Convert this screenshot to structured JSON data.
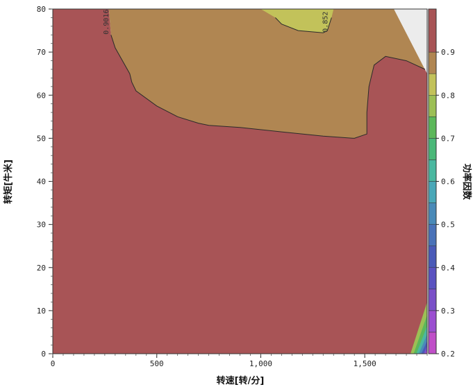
{
  "chart_data": {
    "type": "heatmap",
    "subtype": "filled-contour",
    "xlabel": "转速[转/分]",
    "ylabel": "转矩[牛米]",
    "colorbar_label": "功率因数",
    "xlim": [
      0,
      1800
    ],
    "ylim": [
      0,
      80
    ],
    "x_ticks": [
      0,
      500,
      1000,
      1500
    ],
    "x_tick_labels": [
      "0",
      "500",
      "1,000",
      "1,500"
    ],
    "y_ticks": [
      0,
      10,
      20,
      30,
      40,
      50,
      60,
      70,
      80
    ],
    "y_tick_labels": [
      "0",
      "10",
      "20",
      "30",
      "40",
      "50",
      "60",
      "70",
      "80"
    ],
    "colorbar": {
      "range": [
        0.2,
        1.0
      ],
      "ticks": [
        0.2,
        0.3,
        0.4,
        0.5,
        0.6,
        0.7,
        0.8,
        0.9
      ],
      "tick_labels": [
        "0.2",
        "0.3",
        "0.4",
        "0.5",
        "0.6",
        "0.7",
        "0.8",
        "0.9"
      ],
      "levels": [
        {
          "from": 0.2,
          "to": 0.25,
          "color": "#c04fc8"
        },
        {
          "from": 0.25,
          "to": 0.3,
          "color": "#9b4fd0"
        },
        {
          "from": 0.3,
          "to": 0.35,
          "color": "#7a50c8"
        },
        {
          "from": 0.35,
          "to": 0.4,
          "color": "#5a52c0"
        },
        {
          "from": 0.4,
          "to": 0.45,
          "color": "#4a5ab8"
        },
        {
          "from": 0.45,
          "to": 0.5,
          "color": "#4a72b8"
        },
        {
          "from": 0.5,
          "to": 0.55,
          "color": "#4a8ab8"
        },
        {
          "from": 0.55,
          "to": 0.6,
          "color": "#4aa8b8"
        },
        {
          "from": 0.6,
          "to": 0.65,
          "color": "#4ab8a0"
        },
        {
          "from": 0.65,
          "to": 0.7,
          "color": "#4ab878"
        },
        {
          "from": 0.7,
          "to": 0.75,
          "color": "#5cb85a"
        },
        {
          "from": 0.75,
          "to": 0.8,
          "color": "#9cbf55"
        },
        {
          "from": 0.8,
          "to": 0.85,
          "color": "#c2c25a"
        },
        {
          "from": 0.85,
          "to": 0.9,
          "color": "#b08652"
        },
        {
          "from": 0.9,
          "to": 1.0,
          "color": "#a85456"
        }
      ]
    },
    "regions": [
      {
        "value_range": "0.9-1.0",
        "color": "#a85456",
        "boundary": [
          [
            0,
            0
          ],
          [
            1800,
            0
          ],
          [
            1800,
            66
          ],
          [
            1790,
            66
          ],
          [
            1700,
            68
          ],
          [
            1600,
            69
          ],
          [
            1545,
            67
          ],
          [
            1520,
            62
          ],
          [
            1510,
            56
          ],
          [
            1510,
            51
          ],
          [
            1450,
            50
          ],
          [
            1300,
            50.5
          ],
          [
            1100,
            51.5
          ],
          [
            900,
            52.5
          ],
          [
            750,
            53
          ],
          [
            700,
            53.5
          ],
          [
            600,
            55
          ],
          [
            500,
            57.5
          ],
          [
            400,
            61
          ],
          [
            380,
            63
          ],
          [
            370,
            65
          ],
          [
            300,
            71
          ],
          [
            280,
            74
          ],
          [
            270,
            80
          ],
          [
            0,
            80
          ]
        ]
      },
      {
        "value_range": "0.85-0.9",
        "color": "#b08652",
        "boundary": [
          [
            270,
            80
          ],
          [
            280,
            74
          ],
          [
            300,
            71
          ],
          [
            370,
            65
          ],
          [
            380,
            63
          ],
          [
            400,
            61
          ],
          [
            500,
            57.5
          ],
          [
            600,
            55
          ],
          [
            700,
            53.5
          ],
          [
            750,
            53
          ],
          [
            900,
            52.5
          ],
          [
            1100,
            51.5
          ],
          [
            1300,
            50.5
          ],
          [
            1450,
            50
          ],
          [
            1510,
            51
          ],
          [
            1510,
            56
          ],
          [
            1520,
            62
          ],
          [
            1545,
            67
          ],
          [
            1600,
            69
          ],
          [
            1700,
            68
          ],
          [
            1790,
            66
          ],
          [
            1800,
            66
          ],
          [
            1800,
            65
          ],
          [
            1640,
            80
          ]
        ]
      },
      {
        "value_range": "0.8-0.85",
        "color": "#c2c25a",
        "boundary": [
          [
            1000,
            80
          ],
          [
            1070,
            78
          ],
          [
            1100,
            76.5
          ],
          [
            1180,
            75
          ],
          [
            1300,
            74.5
          ],
          [
            1320,
            75
          ],
          [
            1340,
            78
          ],
          [
            1350,
            80
          ]
        ]
      },
      {
        "value_range": "undefined",
        "color": "#ececec",
        "boundary": [
          [
            1640,
            80
          ],
          [
            1800,
            65
          ],
          [
            1800,
            80
          ]
        ]
      },
      {
        "value_range": "0.75-0.8",
        "color": "#9cbf55",
        "boundary": [
          [
            1720,
            0
          ],
          [
            1800,
            12
          ],
          [
            1800,
            0
          ]
        ]
      },
      {
        "value_range": "0.7-0.75",
        "color": "#5cb85a",
        "boundary": [
          [
            1735,
            0
          ],
          [
            1800,
            9
          ],
          [
            1800,
            0
          ]
        ]
      },
      {
        "value_range": "0.6-0.7",
        "color": "#4ab8a0",
        "boundary": [
          [
            1748,
            0
          ],
          [
            1800,
            6.5
          ],
          [
            1800,
            0
          ]
        ]
      },
      {
        "value_range": "0.5-0.6",
        "color": "#4a8ab8",
        "boundary": [
          [
            1760,
            0
          ],
          [
            1800,
            4.5
          ],
          [
            1800,
            0
          ]
        ]
      },
      {
        "value_range": "0.4-0.5",
        "color": "#4a5ab8",
        "boundary": [
          [
            1772,
            0
          ],
          [
            1800,
            3
          ],
          [
            1800,
            0
          ]
        ]
      },
      {
        "value_range": "0.3-0.4",
        "color": "#7a50c8",
        "boundary": [
          [
            1783,
            0
          ],
          [
            1800,
            1.8
          ],
          [
            1800,
            0
          ]
        ]
      },
      {
        "value_range": "0.2-0.3",
        "color": "#c04fc8",
        "boundary": [
          [
            1792,
            0
          ],
          [
            1800,
            0.8
          ],
          [
            1800,
            0
          ]
        ]
      }
    ],
    "contour_labels": [
      {
        "text": "0.9016",
        "x": 268,
        "y": 77
      },
      {
        "text": "0.852",
        "x": 1320,
        "y": 77
      }
    ],
    "grid": false,
    "legend": "colorbar-right"
  }
}
